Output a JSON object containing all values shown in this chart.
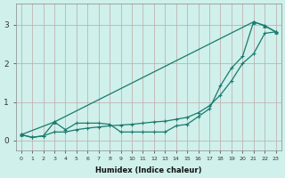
{
  "xlabel": "Humidex (Indice chaleur)",
  "bg_color": "#cff0eb",
  "grid_color": "#c0a8a8",
  "line_color": "#1a7a6e",
  "x_ticks": [
    0,
    1,
    2,
    3,
    4,
    5,
    6,
    7,
    8,
    9,
    10,
    11,
    12,
    13,
    14,
    15,
    16,
    17,
    18,
    19,
    20,
    21,
    22,
    23
  ],
  "xlim": [
    -0.5,
    23.5
  ],
  "ylim": [
    -0.25,
    3.55
  ],
  "yticks": [
    0,
    1,
    2,
    3
  ],
  "line1_x": [
    0,
    1,
    2,
    3,
    4,
    5,
    6,
    7,
    8,
    9,
    10,
    11,
    12,
    13,
    14,
    15,
    16,
    17,
    18,
    19,
    20,
    21,
    22,
    23
  ],
  "line1_y": [
    0.15,
    0.08,
    0.12,
    0.48,
    0.28,
    0.45,
    0.45,
    0.45,
    0.42,
    0.22,
    0.22,
    0.22,
    0.22,
    0.22,
    0.38,
    0.42,
    0.62,
    0.82,
    1.42,
    1.88,
    2.18,
    3.08,
    2.98,
    2.82
  ],
  "line2_x": [
    0,
    1,
    2,
    3,
    4,
    5,
    6,
    7,
    8,
    9,
    10,
    11,
    12,
    13,
    14,
    15,
    16,
    17,
    18,
    19,
    20,
    21,
    22,
    23
  ],
  "line2_y": [
    0.15,
    0.08,
    0.12,
    0.22,
    0.22,
    0.28,
    0.32,
    0.35,
    0.38,
    0.4,
    0.42,
    0.45,
    0.48,
    0.5,
    0.55,
    0.6,
    0.72,
    0.9,
    1.18,
    1.55,
    2.0,
    2.25,
    2.78,
    2.82
  ],
  "line3_x": [
    0,
    3,
    21,
    22,
    23
  ],
  "line3_y": [
    0.15,
    0.48,
    3.08,
    2.98,
    2.82
  ],
  "figsize": [
    3.2,
    2.0
  ],
  "dpi": 100
}
